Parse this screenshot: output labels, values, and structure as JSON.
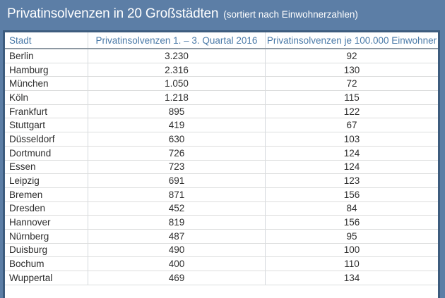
{
  "title": {
    "main": "Privatinsolvenzen in 20 Großstädten",
    "subtitle": "(sortiert nach Einwohnerzahlen)"
  },
  "table": {
    "columns": [
      "Stadt",
      "Privatinsolvenzen 1. – 3. Quartal 2016",
      "Privatinsolvenzen je 100.000 Einwohner"
    ],
    "rows": [
      [
        "Berlin",
        "3.230",
        "92"
      ],
      [
        "Hamburg",
        "2.316",
        "130"
      ],
      [
        "München",
        "1.050",
        "72"
      ],
      [
        "Köln",
        "1.218",
        "115"
      ],
      [
        "Frankfurt",
        "895",
        "122"
      ],
      [
        "Stuttgart",
        "419",
        "67"
      ],
      [
        "Düsseldorf",
        "630",
        "103"
      ],
      [
        "Dortmund",
        "726",
        "124"
      ],
      [
        "Essen",
        "723",
        "124"
      ],
      [
        "Leipzig",
        "691",
        "123"
      ],
      [
        "Bremen",
        "871",
        "156"
      ],
      [
        "Dresden",
        "452",
        "84"
      ],
      [
        "Hannover",
        "819",
        "156"
      ],
      [
        "Nürnberg",
        "487",
        "95"
      ],
      [
        "Duisburg",
        "490",
        "100"
      ],
      [
        "Bochum",
        "400",
        "110"
      ],
      [
        "Wuppertal",
        "469",
        "134"
      ]
    ]
  },
  "chart_data": {
    "type": "table",
    "title": "Privatinsolvenzen in 20 Großstädten",
    "subtitle": "(sortiert nach Einwohnerzahlen)",
    "columns": [
      "Stadt",
      "Privatinsolvenzen 1. – 3. Quartal 2016",
      "Privatinsolvenzen je 100.000 Einwohner"
    ],
    "rows": [
      [
        "Berlin",
        3230,
        92
      ],
      [
        "Hamburg",
        2316,
        130
      ],
      [
        "München",
        1050,
        72
      ],
      [
        "Köln",
        1218,
        115
      ],
      [
        "Frankfurt",
        895,
        122
      ],
      [
        "Stuttgart",
        419,
        67
      ],
      [
        "Düsseldorf",
        630,
        103
      ],
      [
        "Dortmund",
        726,
        124
      ],
      [
        "Essen",
        723,
        124
      ],
      [
        "Leipzig",
        691,
        123
      ],
      [
        "Bremen",
        871,
        156
      ],
      [
        "Dresden",
        452,
        84
      ],
      [
        "Hannover",
        819,
        156
      ],
      [
        "Nürnberg",
        487,
        95
      ],
      [
        "Duisburg",
        490,
        100
      ],
      [
        "Bochum",
        400,
        110
      ],
      [
        "Wuppertal",
        469,
        134
      ]
    ],
    "note_visible_rows": 17
  },
  "colors": {
    "background": "#5c7ea6",
    "table_border": "#3d5c7e",
    "column_header_text": "#4a7aa8",
    "title_text": "#ffffff",
    "body_text": "#2d2d2d",
    "row_separator": "#dcdddd",
    "header_underline": "#8d98a2"
  }
}
